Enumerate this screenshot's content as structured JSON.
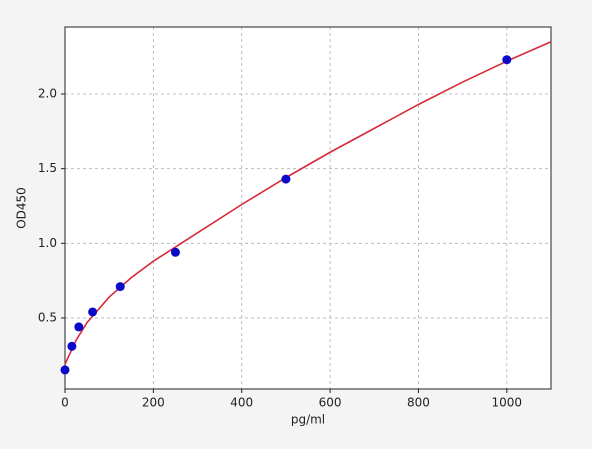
{
  "chart_data": {
    "type": "scatter",
    "xlabel": "pg/ml",
    "ylabel": "OD450",
    "xlim": [
      0,
      1100
    ],
    "xticks": [
      0,
      200,
      400,
      600,
      800,
      1000
    ],
    "ylim": [
      0.024,
      2.449
    ],
    "yticks": [
      {
        "value": 0.5,
        "label": "0.5"
      },
      {
        "value": 1.0,
        "label": "1.0"
      },
      {
        "value": 1.5,
        "label": "1.5"
      },
      {
        "value": 2.0,
        "label": "2.0"
      }
    ],
    "grid": true,
    "series": [
      {
        "type": "scatter",
        "color": "#0a0ac8",
        "x": [
          0,
          15.6,
          31.25,
          62.5,
          125,
          250,
          500,
          1000
        ],
        "values": [
          0.152,
          0.31,
          0.44,
          0.54,
          0.71,
          0.94,
          1.43,
          2.23
        ]
      },
      {
        "type": "line",
        "color": "#d62a3a",
        "x": [
          0,
          25,
          50,
          100,
          150,
          200,
          300,
          400,
          500,
          600,
          700,
          800,
          900,
          1000,
          1100
        ],
        "values": [
          0.19,
          0.35,
          0.47,
          0.64,
          0.77,
          0.88,
          1.07,
          1.26,
          1.44,
          1.61,
          1.77,
          1.93,
          2.08,
          2.22,
          2.35
        ]
      }
    ]
  }
}
